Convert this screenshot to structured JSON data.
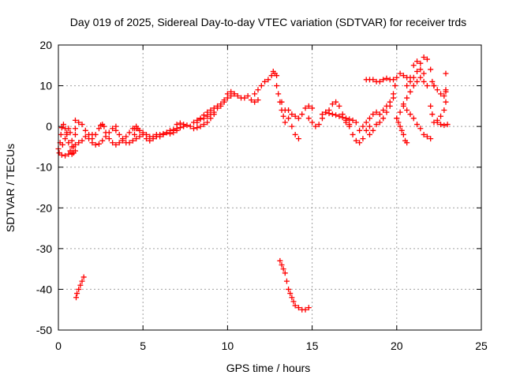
{
  "chart_data": {
    "type": "scatter",
    "title": "Day 019 of 2025, Sidereal Day-to-day VTEC variation (SDTVAR) for receiver trds",
    "xlabel": "GPS time / hours",
    "ylabel": "SDTVAR / TECUs",
    "xlim": [
      0,
      25
    ],
    "ylim": [
      -50,
      20
    ],
    "xticks": [
      0,
      5,
      10,
      15,
      20,
      25
    ],
    "yticks": [
      -50,
      -40,
      -30,
      -20,
      -10,
      0,
      10,
      20
    ],
    "grid": true,
    "legend": "none",
    "marker": "+",
    "color": "#ff0000",
    "series": [
      {
        "name": "SDTVAR",
        "points": [
          [
            0.0,
            -5.5
          ],
          [
            0.1,
            -4.0
          ],
          [
            0.15,
            -2.0
          ],
          [
            0.2,
            -0.3
          ],
          [
            0.3,
            0.5
          ],
          [
            0.4,
            -0.5
          ],
          [
            0.5,
            -2.0
          ],
          [
            0.6,
            -4.0
          ],
          [
            0.7,
            -6.0
          ],
          [
            0.8,
            -6.8
          ],
          [
            0.9,
            -6.5
          ],
          [
            1.0,
            -6.0
          ],
          [
            0.05,
            -6.5
          ],
          [
            0.2,
            -7.0
          ],
          [
            0.4,
            -7.2
          ],
          [
            0.6,
            -6.8
          ],
          [
            0.8,
            -6.5
          ],
          [
            0.25,
            -4.5
          ],
          [
            0.4,
            -3.0
          ],
          [
            0.5,
            -1.5
          ],
          [
            0.6,
            -0.5
          ],
          [
            0.7,
            -1.5
          ],
          [
            0.8,
            -3.5
          ],
          [
            0.9,
            -5.0
          ],
          [
            0.8,
            -5.0
          ],
          [
            1.0,
            -4.5
          ],
          [
            1.2,
            -4.0
          ],
          [
            1.4,
            -3.5
          ],
          [
            1.6,
            -2.5
          ],
          [
            1.8,
            -2.0
          ],
          [
            2.0,
            -2.0
          ],
          [
            1.0,
            -2.0
          ],
          [
            1.0,
            -0.5
          ],
          [
            1.0,
            1.5
          ],
          [
            1.2,
            1.0
          ],
          [
            1.4,
            0.5
          ],
          [
            1.6,
            -1.0
          ],
          [
            1.8,
            -3.0
          ],
          [
            2.0,
            -4.0
          ],
          [
            2.2,
            -4.5
          ],
          [
            2.4,
            -4.3
          ],
          [
            2.6,
            -3.5
          ],
          [
            2.8,
            -2.5
          ],
          [
            3.0,
            -1.5
          ],
          [
            3.2,
            -0.5
          ],
          [
            3.4,
            0.0
          ],
          [
            2.0,
            -3.0
          ],
          [
            2.2,
            -2.0
          ],
          [
            2.4,
            -0.5
          ],
          [
            2.5,
            0.3
          ],
          [
            2.6,
            0.5
          ],
          [
            2.7,
            0.0
          ],
          [
            2.8,
            -1.5
          ],
          [
            3.0,
            -3.0
          ],
          [
            3.2,
            -4.0
          ],
          [
            3.4,
            -4.5
          ],
          [
            3.6,
            -4.0
          ],
          [
            3.8,
            -3.5
          ],
          [
            4.0,
            -2.5
          ],
          [
            4.2,
            -1.5
          ],
          [
            4.4,
            -0.5
          ],
          [
            4.6,
            -0.5
          ],
          [
            3.4,
            -1.0
          ],
          [
            3.6,
            -2.0
          ],
          [
            3.8,
            -3.0
          ],
          [
            4.0,
            -4.0
          ],
          [
            4.2,
            -4.0
          ],
          [
            4.4,
            -3.5
          ],
          [
            4.6,
            -3.0
          ],
          [
            4.8,
            -2.5
          ],
          [
            5.0,
            -2.0
          ],
          [
            4.5,
            -2.0
          ],
          [
            4.5,
            -0.5
          ],
          [
            4.6,
            0.0
          ],
          [
            4.7,
            -0.5
          ],
          [
            4.8,
            -1.0
          ],
          [
            5.0,
            -1.5
          ],
          [
            5.2,
            -2.0
          ],
          [
            5.4,
            -2.5
          ],
          [
            5.6,
            -2.5
          ],
          [
            5.8,
            -2.5
          ],
          [
            5.2,
            -3.0
          ],
          [
            5.4,
            -3.5
          ],
          [
            5.6,
            -3.0
          ],
          [
            5.8,
            -2.5
          ],
          [
            6.0,
            -2.0
          ],
          [
            6.2,
            -1.8
          ],
          [
            6.4,
            -1.5
          ],
          [
            6.6,
            -1.0
          ],
          [
            6.8,
            -0.8
          ],
          [
            7.0,
            -0.5
          ],
          [
            7.2,
            -0.3
          ],
          [
            7.4,
            0.0
          ],
          [
            5.8,
            -2.0
          ],
          [
            6.0,
            -2.5
          ],
          [
            6.2,
            -2.0
          ],
          [
            6.4,
            -1.5
          ],
          [
            6.6,
            -1.8
          ],
          [
            6.8,
            -1.5
          ],
          [
            7.0,
            -1.0
          ],
          [
            7.0,
            0.5
          ],
          [
            7.2,
            0.8
          ],
          [
            7.4,
            0.5
          ],
          [
            7.6,
            0.3
          ],
          [
            7.8,
            0.0
          ],
          [
            8.0,
            -0.5
          ],
          [
            8.2,
            -0.3
          ],
          [
            8.4,
            0.0
          ],
          [
            8.6,
            0.5
          ],
          [
            8.8,
            1.0
          ],
          [
            9.0,
            2.0
          ],
          [
            9.2,
            3.0
          ],
          [
            8.0,
            1.0
          ],
          [
            8.2,
            1.5
          ],
          [
            8.4,
            2.0
          ],
          [
            8.6,
            2.8
          ],
          [
            8.8,
            3.5
          ],
          [
            9.0,
            4.0
          ],
          [
            9.2,
            4.5
          ],
          [
            9.4,
            5.0
          ],
          [
            9.6,
            5.5
          ],
          [
            9.8,
            6.0
          ],
          [
            10.0,
            7.0
          ],
          [
            10.2,
            7.5
          ],
          [
            10.4,
            8.0
          ],
          [
            8.2,
            1.0
          ],
          [
            8.4,
            1.8
          ],
          [
            8.6,
            2.0
          ],
          [
            8.8,
            2.5
          ],
          [
            9.0,
            3.0
          ],
          [
            9.2,
            3.5
          ],
          [
            9.4,
            4.5
          ],
          [
            9.6,
            5.0
          ],
          [
            9.8,
            6.5
          ],
          [
            10.0,
            8.0
          ],
          [
            10.2,
            8.5
          ],
          [
            10.4,
            8.0
          ],
          [
            10.6,
            7.5
          ],
          [
            10.8,
            7.0
          ],
          [
            11.0,
            7.0
          ],
          [
            11.2,
            7.5
          ],
          [
            11.4,
            6.5
          ],
          [
            11.6,
            6.0
          ],
          [
            11.8,
            6.5
          ],
          [
            11.6,
            8.0
          ],
          [
            11.8,
            9.0
          ],
          [
            12.0,
            10.0
          ],
          [
            12.2,
            11.0
          ],
          [
            12.4,
            11.5
          ],
          [
            12.6,
            12.5
          ],
          [
            12.7,
            13.5
          ],
          [
            12.8,
            13.0
          ],
          [
            12.9,
            12.5
          ],
          [
            12.9,
            10.0
          ],
          [
            13.0,
            8.0
          ],
          [
            13.1,
            6.0
          ],
          [
            13.2,
            4.0
          ],
          [
            13.3,
            2.5
          ],
          [
            13.4,
            1.0
          ],
          [
            13.2,
            6.0
          ],
          [
            13.4,
            4.0
          ],
          [
            13.6,
            2.0
          ],
          [
            13.8,
            0.0
          ],
          [
            14.0,
            -2.0
          ],
          [
            14.2,
            -3.0
          ],
          [
            13.6,
            4.0
          ],
          [
            13.8,
            3.0
          ],
          [
            14.0,
            2.5
          ],
          [
            14.2,
            2.0
          ],
          [
            14.4,
            3.0
          ],
          [
            14.6,
            4.5
          ],
          [
            14.8,
            5.0
          ],
          [
            15.0,
            4.5
          ],
          [
            14.8,
            2.0
          ],
          [
            15.0,
            1.0
          ],
          [
            15.2,
            0.0
          ],
          [
            15.4,
            0.5
          ],
          [
            15.6,
            2.0
          ],
          [
            15.8,
            3.5
          ],
          [
            16.0,
            4.0
          ],
          [
            16.2,
            5.5
          ],
          [
            16.4,
            6.0
          ],
          [
            16.6,
            5.0
          ],
          [
            16.8,
            3.0
          ],
          [
            17.0,
            1.5
          ],
          [
            17.2,
            0.5
          ],
          [
            15.6,
            3.0
          ],
          [
            15.8,
            3.5
          ],
          [
            16.0,
            3.2
          ],
          [
            16.2,
            3.0
          ],
          [
            16.4,
            2.8
          ],
          [
            16.6,
            2.5
          ],
          [
            16.8,
            2.2
          ],
          [
            17.0,
            2.0
          ],
          [
            17.2,
            1.8
          ],
          [
            17.4,
            1.5
          ],
          [
            17.6,
            1.0
          ],
          [
            17.0,
            1.0
          ],
          [
            17.2,
            0.0
          ],
          [
            17.4,
            -2.0
          ],
          [
            17.6,
            -3.5
          ],
          [
            17.8,
            -4.0
          ],
          [
            18.0,
            -3.0
          ],
          [
            18.2,
            -1.0
          ],
          [
            18.4,
            0.0
          ],
          [
            17.8,
            -1.0
          ],
          [
            18.0,
            0.0
          ],
          [
            18.2,
            1.0
          ],
          [
            18.4,
            2.0
          ],
          [
            18.6,
            3.0
          ],
          [
            18.8,
            3.5
          ],
          [
            18.4,
            -2.0
          ],
          [
            18.6,
            -1.0
          ],
          [
            18.8,
            0.5
          ],
          [
            19.0,
            1.0
          ],
          [
            19.2,
            2.0
          ],
          [
            19.4,
            3.5
          ],
          [
            19.6,
            5.0
          ],
          [
            19.8,
            7.0
          ],
          [
            19.0,
            3.0
          ],
          [
            19.2,
            4.0
          ],
          [
            19.4,
            5.0
          ],
          [
            19.6,
            6.0
          ],
          [
            19.8,
            8.0
          ],
          [
            19.9,
            10.0
          ],
          [
            20.0,
            2.0
          ],
          [
            20.1,
            1.0
          ],
          [
            20.2,
            0.0
          ],
          [
            20.3,
            -1.0
          ],
          [
            20.4,
            -2.0
          ],
          [
            20.5,
            -3.5
          ],
          [
            20.6,
            -4.0
          ],
          [
            20.4,
            5.0
          ],
          [
            20.6,
            4.0
          ],
          [
            20.8,
            3.0
          ],
          [
            21.0,
            2.0
          ],
          [
            21.2,
            0.5
          ],
          [
            21.4,
            -0.5
          ],
          [
            21.6,
            -2.0
          ],
          [
            21.8,
            -2.5
          ],
          [
            22.0,
            -3.0
          ],
          [
            20.0,
            2.0
          ],
          [
            20.2,
            3.5
          ],
          [
            20.4,
            5.5
          ],
          [
            20.6,
            7.0
          ],
          [
            20.8,
            8.5
          ],
          [
            21.0,
            10.0
          ],
          [
            21.2,
            11.0
          ],
          [
            21.4,
            12.0
          ],
          [
            21.6,
            13.0
          ],
          [
            20.6,
            10.0
          ],
          [
            20.8,
            12.0
          ],
          [
            21.0,
            15.0
          ],
          [
            21.2,
            16.0
          ],
          [
            21.4,
            14.0
          ],
          [
            21.6,
            11.0
          ],
          [
            21.8,
            10.0
          ],
          [
            19.8,
            11.5
          ],
          [
            20.0,
            12.0
          ],
          [
            20.2,
            13.0
          ],
          [
            20.4,
            12.5
          ],
          [
            20.6,
            12.0
          ],
          [
            20.8,
            11.0
          ],
          [
            21.0,
            12.0
          ],
          [
            21.2,
            13.5
          ],
          [
            21.4,
            15.5
          ],
          [
            21.6,
            17.0
          ],
          [
            21.8,
            16.5
          ],
          [
            22.0,
            14.0
          ],
          [
            22.1,
            11.0
          ],
          [
            22.2,
            10.0
          ],
          [
            18.2,
            11.5
          ],
          [
            18.4,
            11.5
          ],
          [
            18.6,
            11.5
          ],
          [
            18.8,
            11.0
          ],
          [
            19.0,
            11.0
          ],
          [
            19.2,
            11.5
          ],
          [
            19.4,
            11.8
          ],
          [
            19.6,
            11.5
          ],
          [
            22.0,
            5.0
          ],
          [
            22.1,
            3.0
          ],
          [
            22.2,
            1.0
          ],
          [
            22.4,
            1.5
          ],
          [
            22.6,
            2.5
          ],
          [
            22.8,
            4.0
          ],
          [
            22.9,
            6.0
          ],
          [
            22.9,
            9.0
          ],
          [
            22.9,
            13.0
          ],
          [
            22.2,
            10.0
          ],
          [
            22.4,
            9.0
          ],
          [
            22.6,
            8.0
          ],
          [
            22.8,
            7.5
          ],
          [
            22.9,
            8.5
          ],
          [
            22.4,
            1.0
          ],
          [
            22.6,
            0.5
          ],
          [
            22.8,
            0.3
          ],
          [
            23.0,
            0.5
          ],
          [
            1.05,
            -42.0
          ],
          [
            1.1,
            -41.0
          ],
          [
            1.2,
            -40.0
          ],
          [
            1.3,
            -39.0
          ],
          [
            1.4,
            -38.0
          ],
          [
            1.5,
            -37.0
          ],
          [
            13.1,
            -33.0
          ],
          [
            13.2,
            -34.0
          ],
          [
            13.3,
            -35.0
          ],
          [
            13.4,
            -36.0
          ],
          [
            13.5,
            -38.0
          ],
          [
            13.6,
            -40.0
          ],
          [
            13.7,
            -41.0
          ],
          [
            13.8,
            -42.0
          ],
          [
            13.9,
            -43.0
          ],
          [
            14.0,
            -44.0
          ],
          [
            14.2,
            -44.5
          ],
          [
            14.4,
            -45.0
          ],
          [
            14.6,
            -45.0
          ],
          [
            14.8,
            -44.5
          ]
        ]
      }
    ]
  }
}
